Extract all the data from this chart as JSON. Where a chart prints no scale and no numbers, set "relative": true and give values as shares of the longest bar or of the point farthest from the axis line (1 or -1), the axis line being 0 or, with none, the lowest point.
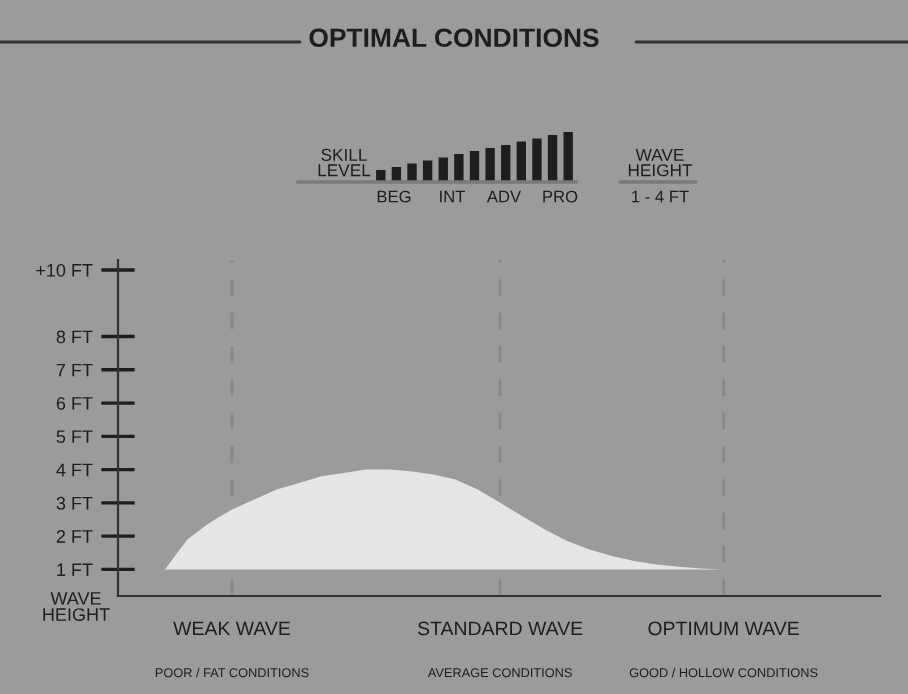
{
  "chart_data": [
    {
      "type": "bar",
      "relative": true,
      "title": "OPTIMAL CONDITIONS",
      "categories": [
        null,
        null,
        null,
        null,
        null,
        null,
        null,
        null,
        null,
        null,
        null,
        null,
        null
      ],
      "values": [
        0.24,
        0.3,
        0.37,
        0.43,
        0.49,
        0.56,
        0.62,
        0.68,
        0.74,
        0.81,
        0.87,
        0.94,
        1.0
      ],
      "color": "#1e1e1e",
      "annotations": [
        "SKILL\nLEVEL",
        "BEG",
        "INT",
        "ADV",
        "PRO",
        "WAVE\nHEIGHT",
        "1 - 4 FT"
      ]
    },
    {
      "type": "area",
      "ylabel": "WAVE\nHEIGHT",
      "categories": [
        null,
        null,
        null,
        "WEAK WAVE",
        null,
        null,
        null,
        null,
        null,
        null,
        null,
        null,
        null,
        null,
        null,
        "STANDARD WAVE",
        null,
        null,
        null,
        null,
        null,
        null,
        null,
        null,
        null,
        "OPTIMUM WAVE"
      ],
      "series": [
        {
          "color": "#e6e6e6",
          "values": [
            1.0,
            1.9,
            2.4,
            2.8,
            3.1,
            3.4,
            3.6,
            3.8,
            3.9,
            4.0,
            4.0,
            3.95,
            3.85,
            3.7,
            3.4,
            3.0,
            2.6,
            2.2,
            1.85,
            1.6,
            1.4,
            1.25,
            1.15,
            1.08,
            1.03,
            1.0
          ]
        }
      ],
      "ylim": [
        0.2,
        10.3
      ],
      "yticks": [
        {
          "value": 1,
          "label": "1 FT"
        },
        {
          "value": 2,
          "label": "2 FT"
        },
        {
          "value": 3,
          "label": "3 FT"
        },
        {
          "value": 4,
          "label": "4 FT"
        },
        {
          "value": 5,
          "label": "5 FT"
        },
        {
          "value": 6,
          "label": "6 FT"
        },
        {
          "value": 7,
          "label": "7 FT"
        },
        {
          "value": 8,
          "label": "8 FT"
        },
        {
          "value": 10,
          "label": "+10 FT"
        }
      ],
      "grid": "x",
      "annotations": [
        "POOR / FAT CONDITIONS",
        "AVERAGE CONDITIONS",
        "GOOD / HOLLOW CONDITIONS"
      ]
    }
  ]
}
